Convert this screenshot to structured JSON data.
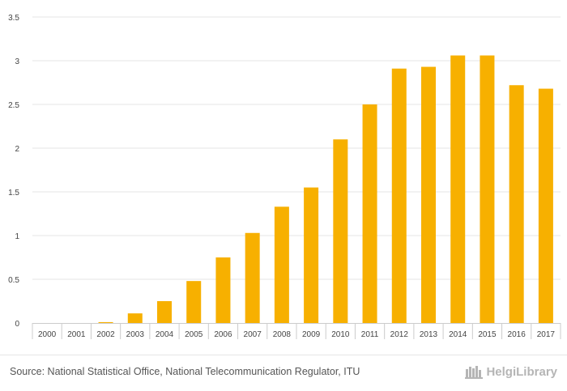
{
  "chart_data": {
    "type": "bar",
    "title": "",
    "xlabel": "",
    "ylabel": "",
    "categories": [
      "2000",
      "2001",
      "2002",
      "2003",
      "2004",
      "2005",
      "2006",
      "2007",
      "2008",
      "2009",
      "2010",
      "2011",
      "2012",
      "2013",
      "2014",
      "2015",
      "2016",
      "2017"
    ],
    "values": [
      0.0,
      0.0,
      0.01,
      0.11,
      0.25,
      0.48,
      0.75,
      1.03,
      1.33,
      1.55,
      2.1,
      2.5,
      2.91,
      2.93,
      3.06,
      3.06,
      2.72,
      2.68
    ],
    "ylim": [
      0,
      3.5
    ],
    "yticks": [
      0,
      0.5,
      1,
      1.5,
      2,
      2.5,
      3,
      3.5
    ],
    "ytick_labels": [
      "0",
      "0.5",
      "1",
      "1.5",
      "2",
      "2.5",
      "3",
      "3.5"
    ],
    "grid": true,
    "colors": {
      "bar": "#f7b000",
      "grid": "#e6e6e6",
      "axis": "#cccccc"
    }
  },
  "footer": {
    "source": "Source: National Statistical Office, National Telecommunication Regulator, ITU",
    "brand": "HelgiLibrary"
  }
}
